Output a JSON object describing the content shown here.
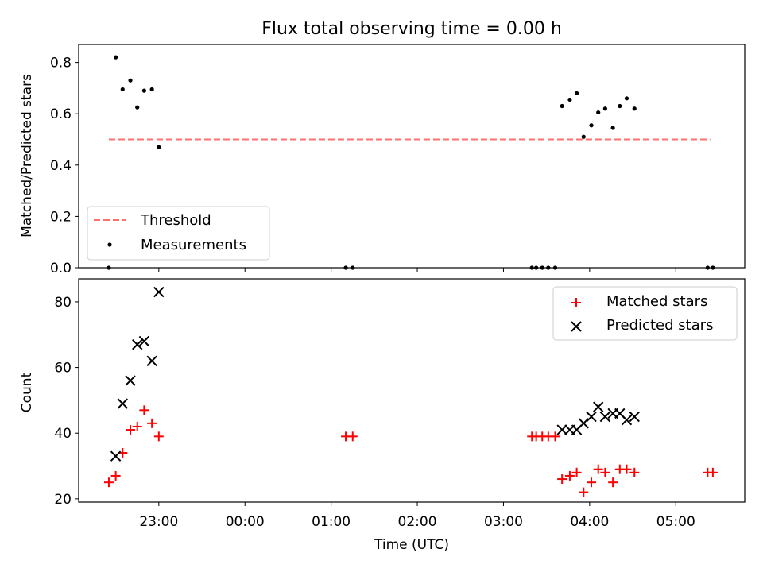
{
  "figure": {
    "title": "Flux total observing time = 0.00 h",
    "xlabel": "Time (UTC)",
    "xticks": [
      "23:00",
      "00:00",
      "01:00",
      "02:00",
      "03:00",
      "04:00",
      "05:00"
    ]
  },
  "chart_data": [
    {
      "type": "scatter",
      "title": "Flux total observing time = 0.00 h",
      "ylabel": "Matched/Predicted stars",
      "x_axis": "time (h relative to 00:00 UTC)",
      "xlim": [
        -1.93,
        5.8
      ],
      "ylim": [
        0,
        0.87
      ],
      "yticks": [
        0.0,
        0.2,
        0.4,
        0.6,
        0.8
      ],
      "grid": false,
      "legend": {
        "placement": "lower-left",
        "entries": [
          "Threshold",
          "Measurements"
        ]
      },
      "threshold": {
        "name": "Threshold",
        "value": 0.5,
        "x_range": [
          -1.58,
          5.4
        ],
        "color": "#ff7070",
        "style": "dashed"
      },
      "series": [
        {
          "name": "Measurements",
          "color": "#000000",
          "marker": "dot",
          "x": [
            -1.58,
            -1.5,
            -1.42,
            -1.33,
            -1.25,
            -1.17,
            -1.08,
            -1.0,
            1.17,
            1.25,
            3.33,
            3.38,
            3.45,
            3.52,
            3.6,
            3.68,
            3.77,
            3.85,
            3.93,
            4.02,
            4.1,
            4.18,
            4.27,
            4.35,
            4.43,
            4.52,
            5.37,
            5.43
          ],
          "y": [
            0.0,
            0.82,
            0.695,
            0.73,
            0.625,
            0.69,
            0.695,
            0.47,
            0.0,
            0.0,
            0.0,
            0.0,
            0.0,
            0.0,
            0.0,
            0.63,
            0.655,
            0.68,
            0.51,
            0.555,
            0.605,
            0.62,
            0.545,
            0.63,
            0.66,
            0.62,
            0.0,
            0.0
          ]
        }
      ]
    },
    {
      "type": "scatter",
      "ylabel": "Count",
      "xlabel": "Time (UTC)",
      "x_axis": "time (h relative to 00:00 UTC)",
      "xlim": [
        -1.93,
        5.8
      ],
      "ylim": [
        19,
        87
      ],
      "yticks": [
        20,
        40,
        60,
        80
      ],
      "grid": false,
      "legend": {
        "placement": "top-right",
        "entries": [
          "Matched stars",
          "Predicted stars"
        ]
      },
      "series": [
        {
          "name": "Matched stars",
          "color": "#ff0000",
          "marker": "plus",
          "x": [
            -1.58,
            -1.5,
            -1.42,
            -1.33,
            -1.25,
            -1.17,
            -1.08,
            -1.0,
            1.17,
            1.25,
            3.33,
            3.38,
            3.45,
            3.52,
            3.6,
            3.68,
            3.77,
            3.85,
            3.93,
            4.02,
            4.1,
            4.18,
            4.27,
            4.35,
            4.43,
            4.52,
            5.37,
            5.43
          ],
          "y": [
            25,
            27,
            34,
            41,
            42,
            47,
            43,
            39,
            39,
            39,
            39,
            39,
            39,
            39,
            39,
            26,
            27,
            28,
            22,
            25,
            29,
            28,
            25,
            29,
            29,
            28,
            28,
            28
          ]
        },
        {
          "name": "Predicted stars",
          "color": "#000000",
          "marker": "x",
          "x": [
            -1.5,
            -1.42,
            -1.33,
            -1.25,
            -1.17,
            -1.08,
            -1.0,
            3.68,
            3.77,
            3.85,
            3.93,
            4.02,
            4.1,
            4.18,
            4.27,
            4.35,
            4.43,
            4.52
          ],
          "y": [
            33,
            49,
            56,
            67,
            68,
            62,
            83,
            41,
            41,
            41,
            43,
            45,
            48,
            45,
            46,
            46,
            44,
            45
          ]
        }
      ]
    }
  ]
}
